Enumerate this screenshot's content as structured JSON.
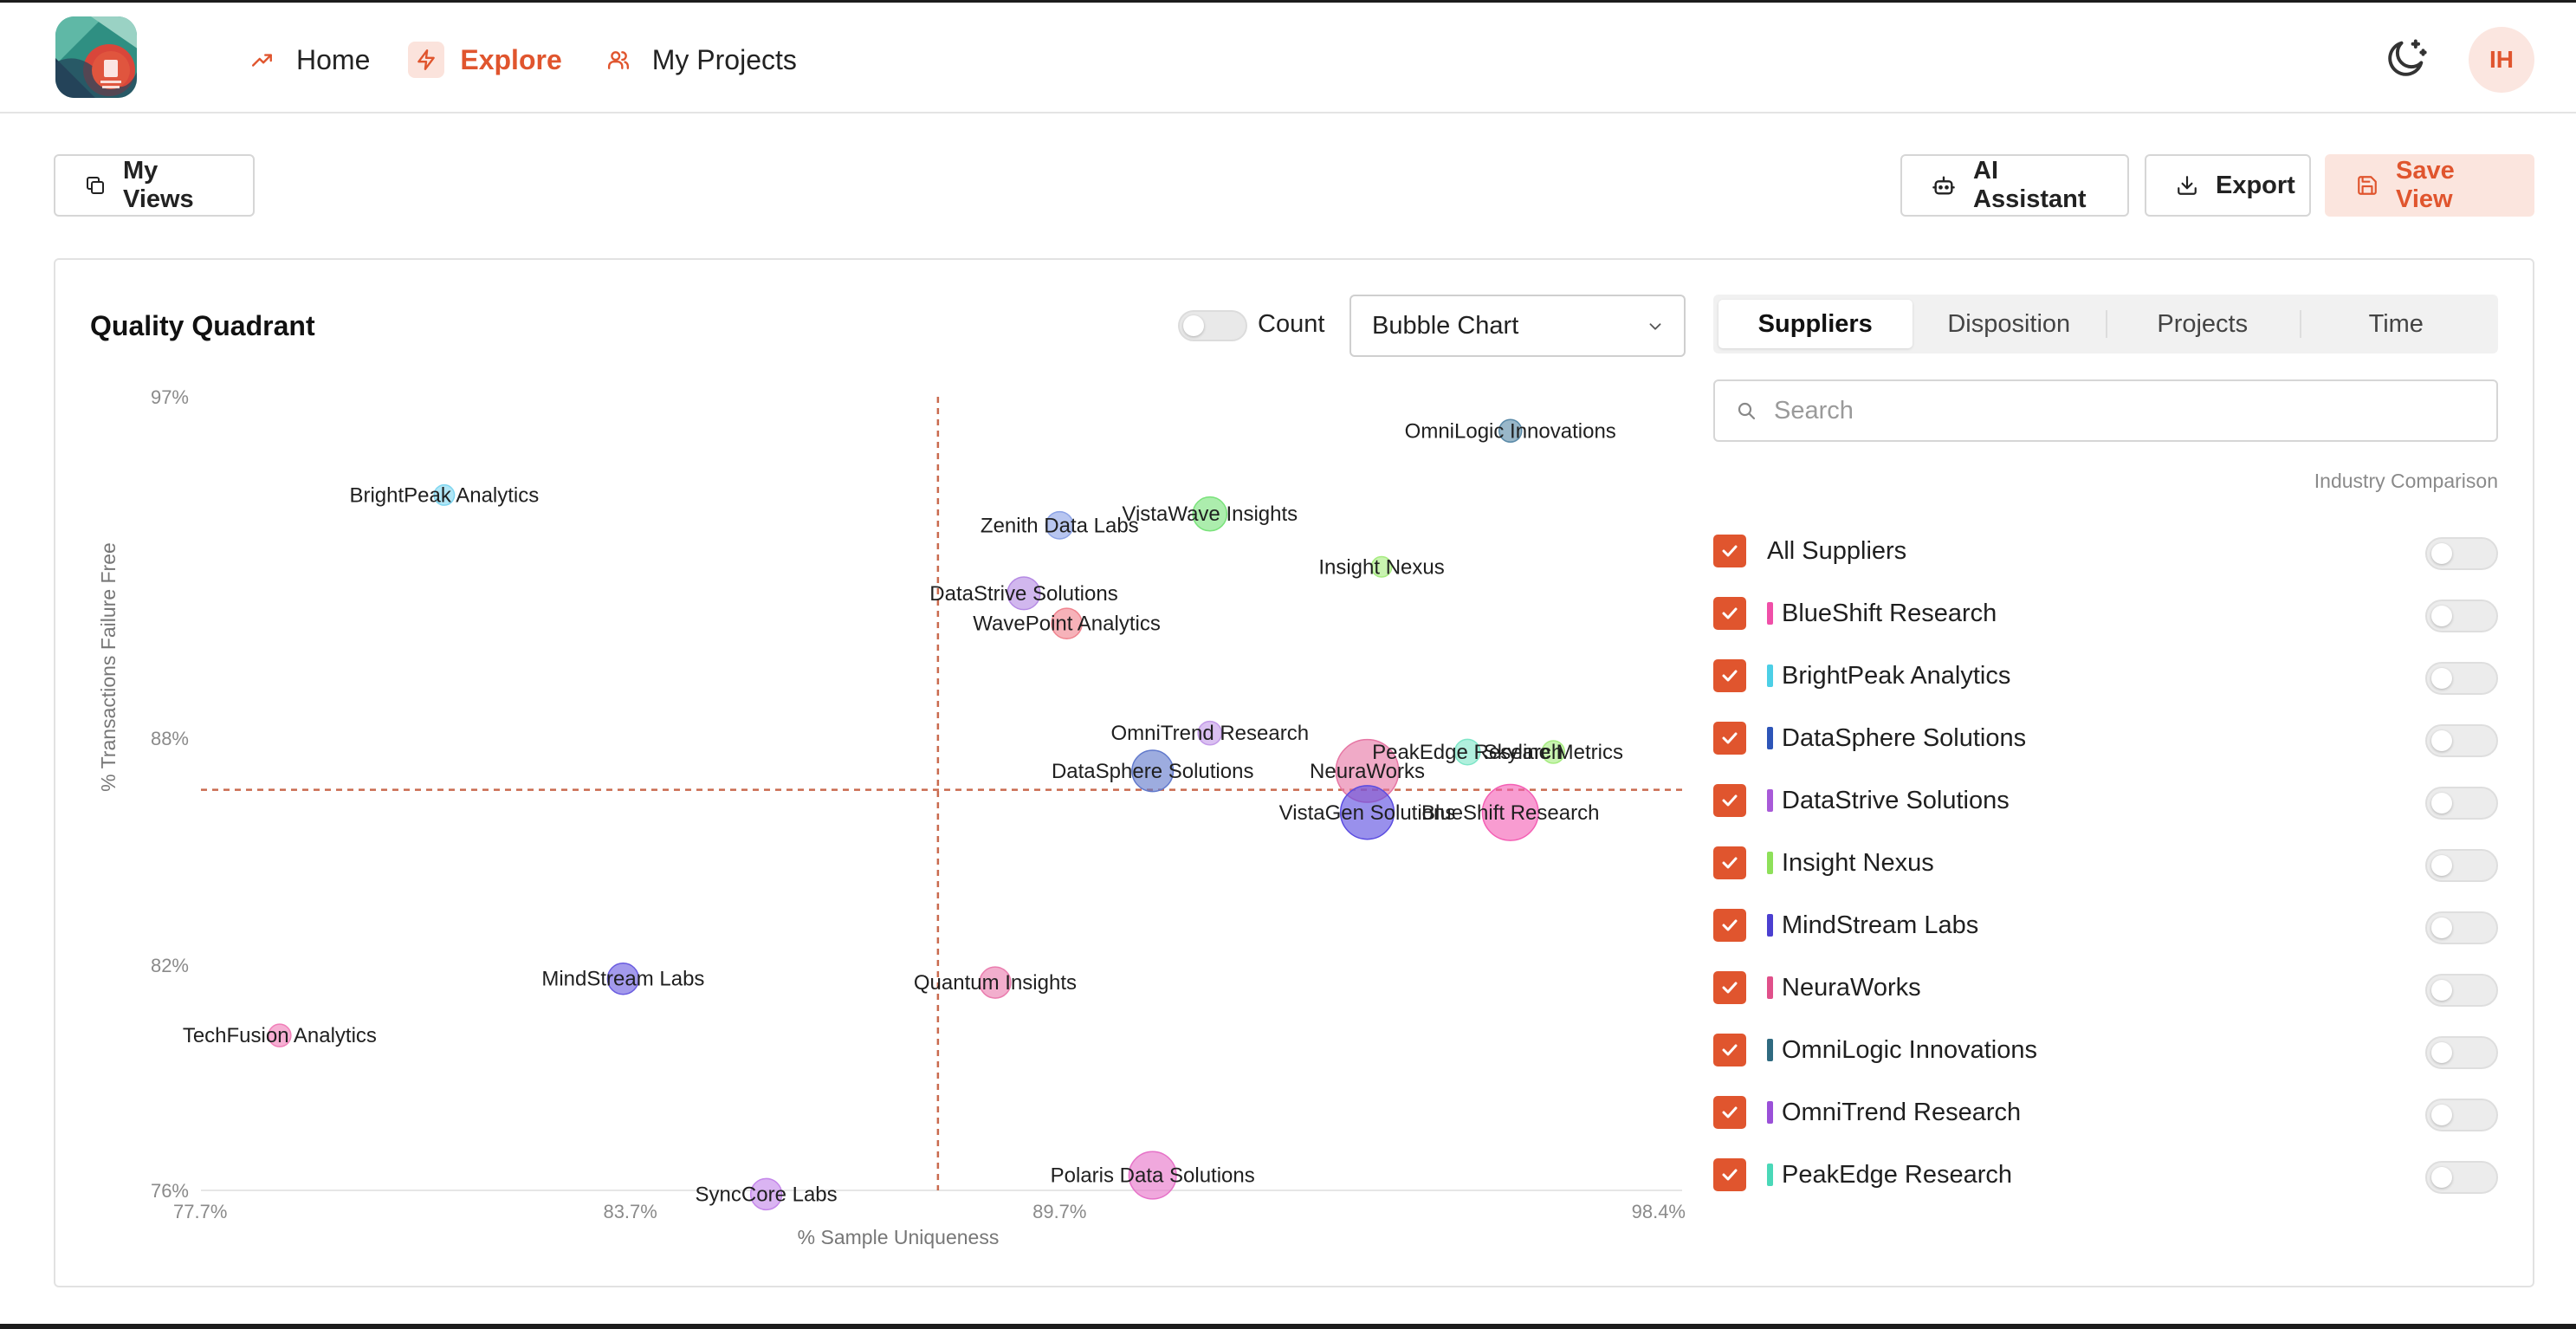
{
  "nav": {
    "items": [
      {
        "label": "Home",
        "icon": "trending-up-icon"
      },
      {
        "label": "Explore",
        "icon": "lightning-icon",
        "active": true
      },
      {
        "label": "My Projects",
        "icon": "users-icon"
      }
    ],
    "avatar_initials": "IH"
  },
  "toolbar": {
    "my_views_label": "My Views",
    "ai_label": "AI Assistant",
    "export_label": "Export",
    "save_label": "Save View"
  },
  "card": {
    "title": "Quality Quadrant",
    "count_label": "Count",
    "chart_type_selected": "Bubble Chart"
  },
  "panel": {
    "tabs": [
      "Suppliers",
      "Disposition",
      "Projects",
      "Time"
    ],
    "active_tab": "Suppliers",
    "search_placeholder": "Search",
    "industry_label": "Industry Comparison",
    "all_label": "All Suppliers",
    "suppliers": [
      {
        "name": "BlueShift Research",
        "color": "#f04fa8"
      },
      {
        "name": "BrightPeak Analytics",
        "color": "#4ccfe6"
      },
      {
        "name": "DataSphere Solutions",
        "color": "#2d55b8"
      },
      {
        "name": "DataStrive Solutions",
        "color": "#a85ad8"
      },
      {
        "name": "Insight Nexus",
        "color": "#8ee05a"
      },
      {
        "name": "MindStream Labs",
        "color": "#4b3fd0"
      },
      {
        "name": "NeuraWorks",
        "color": "#e0508a"
      },
      {
        "name": "OmniLogic Innovations",
        "color": "#2f6a80"
      },
      {
        "name": "OmniTrend Research",
        "color": "#9a50d8"
      },
      {
        "name": "PeakEdge Research",
        "color": "#4ad8b8"
      }
    ]
  },
  "accent_color": "#e0552e",
  "chart_data": {
    "type": "bubble",
    "xlabel": "% Sample Uniqueness",
    "ylabel": "% Transactions Failure Free",
    "x_ticks": [
      "77.7%",
      "83.7%",
      "89.7%",
      "98.4%"
    ],
    "y_ticks": [
      "97%",
      "88%",
      "82%",
      "76%"
    ],
    "quadrant_lines": {
      "x": 88.0,
      "y": 86.6
    },
    "points": [
      {
        "name": "OmniLogic Innovations",
        "x": 96.0,
        "y": 96.1,
        "size": 1.0,
        "color": "#5a8aa8"
      },
      {
        "name": "BrightPeak Analytics",
        "x": 81.1,
        "y": 94.4,
        "size": 0.8,
        "color": "#7fd6f0"
      },
      {
        "name": "VistaWave Insights",
        "x": 91.8,
        "y": 93.9,
        "size": 2.4,
        "color": "#79e27a"
      },
      {
        "name": "Zenith Data Labs",
        "x": 89.7,
        "y": 93.6,
        "size": 1.5,
        "color": "#8ca3e6"
      },
      {
        "name": "Insight Nexus",
        "x": 94.2,
        "y": 92.5,
        "size": 0.8,
        "color": "#a6ec80"
      },
      {
        "name": "DataStrive Solutions",
        "x": 89.2,
        "y": 91.8,
        "size": 2.2,
        "color": "#b58ae4"
      },
      {
        "name": "WavePoint Analytics",
        "x": 89.8,
        "y": 91.0,
        "size": 1.9,
        "color": "#f0838e"
      },
      {
        "name": "OmniTrend Research",
        "x": 91.8,
        "y": 88.1,
        "size": 1.1,
        "color": "#c39ae8"
      },
      {
        "name": "DataSphere Solutions",
        "x": 91.0,
        "y": 87.1,
        "size": 3.6,
        "color": "#6179cc"
      },
      {
        "name": "NeuraWorks",
        "x": 94.0,
        "y": 87.1,
        "size": 8.6,
        "color": "#e676a4"
      },
      {
        "name": "PeakEdge Research",
        "x": 95.4,
        "y": 87.6,
        "size": 1.3,
        "color": "#7fe6c8"
      },
      {
        "name": "Skyline Metrics",
        "x": 96.6,
        "y": 87.6,
        "size": 1.0,
        "color": "#a6ec80"
      },
      {
        "name": "VistaGen Solutions",
        "x": 94.0,
        "y": 86.0,
        "size": 6.2,
        "color": "#5a4ce0"
      },
      {
        "name": "BlueShift Research",
        "x": 96.0,
        "y": 86.0,
        "size": 6.8,
        "color": "#f45fb4"
      },
      {
        "name": "MindStream Labs",
        "x": 83.6,
        "y": 81.6,
        "size": 2.0,
        "color": "#6a5ce0"
      },
      {
        "name": "Quantum Insights",
        "x": 88.8,
        "y": 81.5,
        "size": 2.0,
        "color": "#ea7cae"
      },
      {
        "name": "TechFusion Analytics",
        "x": 78.8,
        "y": 80.1,
        "size": 1.0,
        "color": "#f07eb8"
      },
      {
        "name": "Polaris Data Solutions",
        "x": 91.0,
        "y": 76.4,
        "size": 4.8,
        "color": "#e672c8"
      },
      {
        "name": "SyncCore Labs",
        "x": 85.6,
        "y": 75.9,
        "size": 2.0,
        "color": "#c486ea"
      }
    ]
  }
}
